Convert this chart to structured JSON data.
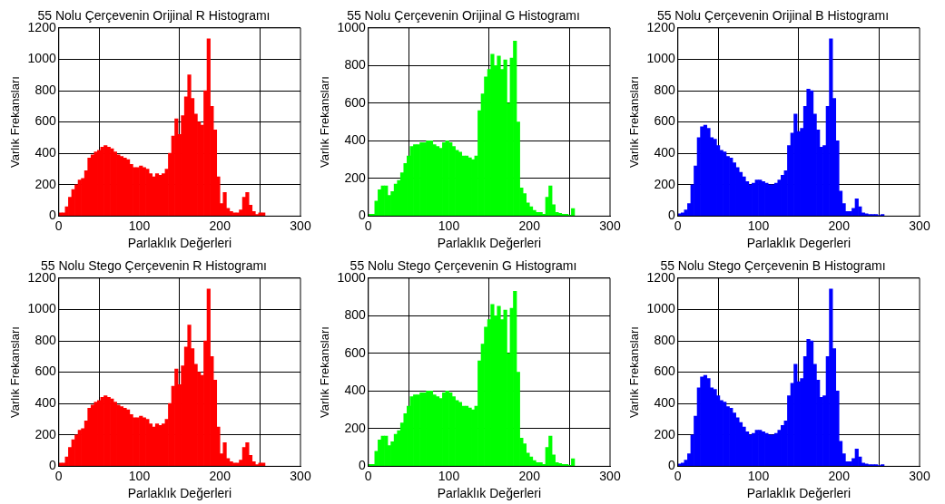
{
  "chart_data": [
    {
      "type": "histogram",
      "title": "55 Nolu Çerçevenin Orijinal R Histogramı",
      "xlabel": "Parlaklık Değerleri",
      "ylabel": "Varlık Frekansları",
      "color": "#ff0000",
      "grid": true,
      "xlim": [
        0,
        300
      ],
      "xticks": [
        0,
        100,
        200,
        300
      ],
      "ylim": [
        0,
        1200
      ],
      "yticks": [
        0,
        200,
        400,
        600,
        800,
        1000,
        1200
      ],
      "bins": [
        0,
        4,
        8,
        12,
        16,
        20,
        24,
        28,
        32,
        36,
        40,
        44,
        48,
        52,
        56,
        60,
        64,
        68,
        72,
        76,
        80,
        84,
        88,
        92,
        96,
        100,
        104,
        108,
        112,
        116,
        120,
        124,
        128,
        132,
        136,
        140,
        144,
        148,
        152,
        156,
        160,
        164,
        168,
        172,
        176,
        180,
        184,
        188,
        192,
        196,
        200,
        204,
        208,
        212,
        216,
        220,
        224,
        228,
        232,
        236,
        240,
        244,
        248,
        252,
        256
      ],
      "values": [
        20,
        20,
        60,
        120,
        170,
        200,
        230,
        240,
        290,
        370,
        390,
        410,
        420,
        440,
        450,
        440,
        430,
        410,
        390,
        380,
        370,
        360,
        330,
        310,
        310,
        320,
        310,
        300,
        270,
        250,
        270,
        260,
        270,
        300,
        400,
        510,
        620,
        520,
        640,
        760,
        900,
        750,
        650,
        600,
        580,
        800,
        1130,
        700,
        550,
        250,
        80,
        150,
        50,
        30,
        20,
        20,
        40,
        120,
        150,
        70,
        30,
        10,
        20,
        20
      ]
    },
    {
      "type": "histogram",
      "title": "55 Nolu Çerçevenin Orijinal G Histogramı",
      "xlabel": "Parlaklık Değerleri",
      "ylabel": "Varlık Frekansları",
      "color": "#00ff00",
      "grid": true,
      "xlim": [
        0,
        300
      ],
      "xticks": [
        0,
        100,
        200,
        300
      ],
      "ylim": [
        0,
        1000
      ],
      "yticks": [
        0,
        200,
        400,
        600,
        800,
        1000
      ],
      "bins": [
        0,
        4,
        8,
        12,
        16,
        20,
        24,
        28,
        32,
        36,
        40,
        44,
        48,
        52,
        56,
        60,
        64,
        68,
        72,
        76,
        80,
        84,
        88,
        92,
        96,
        100,
        104,
        108,
        112,
        116,
        120,
        124,
        128,
        132,
        136,
        140,
        144,
        148,
        152,
        156,
        160,
        164,
        168,
        172,
        176,
        180,
        184,
        188,
        192,
        196,
        200,
        204,
        208,
        212,
        216,
        220,
        224,
        228,
        232,
        236,
        240,
        244,
        248,
        252,
        256
      ],
      "values": [
        10,
        10,
        80,
        140,
        160,
        160,
        110,
        130,
        170,
        190,
        230,
        280,
        320,
        370,
        380,
        380,
        390,
        390,
        400,
        400,
        380,
        370,
        360,
        390,
        400,
        390,
        370,
        350,
        340,
        320,
        320,
        310,
        300,
        320,
        560,
        650,
        740,
        780,
        860,
        800,
        850,
        780,
        830,
        600,
        840,
        930,
        500,
        150,
        120,
        70,
        50,
        30,
        20,
        20,
        10,
        100,
        160,
        60,
        20,
        15,
        10,
        10,
        5,
        40
      ]
    },
    {
      "type": "histogram",
      "title": "55 Nolu Çerçevenin Orijinal B Histogramı",
      "xlabel": "Parlaklık Degerleri",
      "ylabel": "Varlık Frekansları",
      "color": "#0000ff",
      "grid": true,
      "xlim": [
        0,
        300
      ],
      "xticks": [
        0,
        100,
        200,
        300
      ],
      "ylim": [
        0,
        1200
      ],
      "yticks": [
        0,
        200,
        400,
        600,
        800,
        1000,
        1200
      ],
      "bins": [
        0,
        4,
        8,
        12,
        16,
        20,
        24,
        28,
        32,
        36,
        40,
        44,
        48,
        52,
        56,
        60,
        64,
        68,
        72,
        76,
        80,
        84,
        88,
        92,
        96,
        100,
        104,
        108,
        112,
        116,
        120,
        124,
        128,
        132,
        136,
        140,
        144,
        148,
        152,
        156,
        160,
        164,
        168,
        172,
        176,
        180,
        184,
        188,
        192,
        196,
        200,
        204,
        208,
        212,
        216,
        220,
        224,
        228,
        232,
        236,
        240,
        244,
        248,
        252,
        256
      ],
      "values": [
        15,
        20,
        40,
        80,
        200,
        320,
        500,
        570,
        580,
        560,
        500,
        490,
        450,
        420,
        410,
        380,
        370,
        340,
        310,
        280,
        250,
        220,
        200,
        210,
        230,
        230,
        220,
        210,
        200,
        200,
        210,
        230,
        260,
        290,
        450,
        530,
        650,
        540,
        560,
        700,
        810,
        800,
        650,
        550,
        440,
        450,
        700,
        1130,
        750,
        480,
        160,
        80,
        30,
        30,
        50,
        110,
        60,
        20,
        15,
        10,
        10,
        10,
        5,
        10
      ]
    },
    {
      "type": "histogram",
      "title": "55 Nolu Stego Çerçevenin R Histogramı",
      "xlabel": "Parlaklık Değerleri",
      "ylabel": "Varlık Frekansları",
      "color": "#ff0000",
      "grid": true,
      "xlim": [
        0,
        300
      ],
      "xticks": [
        0,
        100,
        200,
        300
      ],
      "ylim": [
        0,
        1200
      ],
      "yticks": [
        0,
        200,
        400,
        600,
        800,
        1000,
        1200
      ],
      "bins": [
        0,
        4,
        8,
        12,
        16,
        20,
        24,
        28,
        32,
        36,
        40,
        44,
        48,
        52,
        56,
        60,
        64,
        68,
        72,
        76,
        80,
        84,
        88,
        92,
        96,
        100,
        104,
        108,
        112,
        116,
        120,
        124,
        128,
        132,
        136,
        140,
        144,
        148,
        152,
        156,
        160,
        164,
        168,
        172,
        176,
        180,
        184,
        188,
        192,
        196,
        200,
        204,
        208,
        212,
        216,
        220,
        224,
        228,
        232,
        236,
        240,
        244,
        248,
        252,
        256
      ],
      "values": [
        20,
        20,
        60,
        120,
        170,
        200,
        230,
        240,
        290,
        370,
        390,
        410,
        420,
        440,
        450,
        440,
        430,
        410,
        390,
        380,
        370,
        360,
        330,
        310,
        310,
        320,
        310,
        300,
        270,
        250,
        270,
        260,
        270,
        300,
        400,
        510,
        620,
        520,
        640,
        760,
        900,
        750,
        650,
        600,
        580,
        800,
        1130,
        700,
        550,
        250,
        80,
        150,
        50,
        30,
        20,
        20,
        40,
        120,
        150,
        70,
        30,
        10,
        20,
        20
      ]
    },
    {
      "type": "histogram",
      "title": "55 Nolu Stego Çerçevenin G Histogramı",
      "xlabel": "Parlaklık Değerleri",
      "ylabel": "Varlık Frekansları",
      "color": "#00ff00",
      "grid": true,
      "xlim": [
        0,
        300
      ],
      "xticks": [
        0,
        100,
        200,
        300
      ],
      "ylim": [
        0,
        1000
      ],
      "yticks": [
        0,
        200,
        400,
        600,
        800,
        1000
      ],
      "bins": [
        0,
        4,
        8,
        12,
        16,
        20,
        24,
        28,
        32,
        36,
        40,
        44,
        48,
        52,
        56,
        60,
        64,
        68,
        72,
        76,
        80,
        84,
        88,
        92,
        96,
        100,
        104,
        108,
        112,
        116,
        120,
        124,
        128,
        132,
        136,
        140,
        144,
        148,
        152,
        156,
        160,
        164,
        168,
        172,
        176,
        180,
        184,
        188,
        192,
        196,
        200,
        204,
        208,
        212,
        216,
        220,
        224,
        228,
        232,
        236,
        240,
        244,
        248,
        252,
        256
      ],
      "values": [
        10,
        10,
        80,
        140,
        160,
        160,
        110,
        130,
        170,
        190,
        230,
        280,
        320,
        370,
        380,
        380,
        390,
        390,
        400,
        400,
        380,
        370,
        360,
        390,
        400,
        390,
        370,
        350,
        340,
        320,
        320,
        310,
        300,
        320,
        560,
        650,
        740,
        780,
        860,
        800,
        850,
        780,
        830,
        600,
        840,
        930,
        500,
        150,
        120,
        70,
        50,
        30,
        20,
        20,
        10,
        100,
        160,
        60,
        20,
        15,
        10,
        10,
        5,
        40
      ]
    },
    {
      "type": "histogram",
      "title": "55 Nolu Stego Çerçevenin B Histogramı",
      "xlabel": "Parlaklık Değerleri",
      "ylabel": "Varlık Frekansları",
      "color": "#0000ff",
      "grid": true,
      "xlim": [
        0,
        300
      ],
      "xticks": [
        0,
        100,
        200,
        300
      ],
      "ylim": [
        0,
        1200
      ],
      "yticks": [
        0,
        200,
        400,
        600,
        800,
        1000,
        1200
      ],
      "bins": [
        0,
        4,
        8,
        12,
        16,
        20,
        24,
        28,
        32,
        36,
        40,
        44,
        48,
        52,
        56,
        60,
        64,
        68,
        72,
        76,
        80,
        84,
        88,
        92,
        96,
        100,
        104,
        108,
        112,
        116,
        120,
        124,
        128,
        132,
        136,
        140,
        144,
        148,
        152,
        156,
        160,
        164,
        168,
        172,
        176,
        180,
        184,
        188,
        192,
        196,
        200,
        204,
        208,
        212,
        216,
        220,
        224,
        228,
        232,
        236,
        240,
        244,
        248,
        252,
        256
      ],
      "values": [
        15,
        20,
        40,
        80,
        200,
        320,
        500,
        570,
        580,
        560,
        500,
        490,
        450,
        420,
        410,
        380,
        370,
        340,
        310,
        280,
        250,
        220,
        200,
        210,
        230,
        230,
        220,
        210,
        200,
        200,
        210,
        230,
        260,
        290,
        450,
        530,
        650,
        540,
        560,
        700,
        810,
        800,
        650,
        550,
        440,
        450,
        700,
        1130,
        750,
        480,
        160,
        80,
        30,
        30,
        50,
        110,
        60,
        20,
        15,
        10,
        10,
        10,
        5,
        10
      ]
    }
  ]
}
